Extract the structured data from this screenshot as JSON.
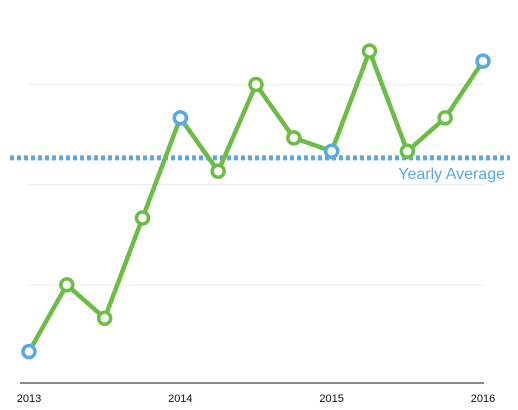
{
  "chart_data": {
    "type": "line",
    "x_tick_labels": [
      "2013",
      "2014",
      "2015",
      "2016"
    ],
    "x": [
      2013.0,
      2013.25,
      2013.5,
      2013.75,
      2014.0,
      2014.25,
      2014.5,
      2014.75,
      2015.0,
      2015.25,
      2015.5,
      2015.75,
      2016.0
    ],
    "series": [
      {
        "values": [
          1.0,
          3.0,
          2.0,
          5.0,
          8.0,
          6.4,
          9.0,
          7.4,
          7.0,
          10.0,
          7.0,
          8.0,
          9.7
        ],
        "color": "#6cbd45",
        "highlighted_points": [
          0,
          4,
          8,
          12
        ],
        "highlight_color": "#58a8e8"
      }
    ],
    "reference_line": {
      "label": "Yearly Average",
      "value": 6.8,
      "color": "#58a8e8",
      "style": "dotted"
    },
    "xlim": [
      2013.0,
      2016.0
    ],
    "ylim": [
      0,
      11.2
    ],
    "y_gridlines": [
      0,
      3,
      6,
      9,
      12
    ],
    "grid": true,
    "title": "",
    "xlabel": "",
    "ylabel": ""
  }
}
